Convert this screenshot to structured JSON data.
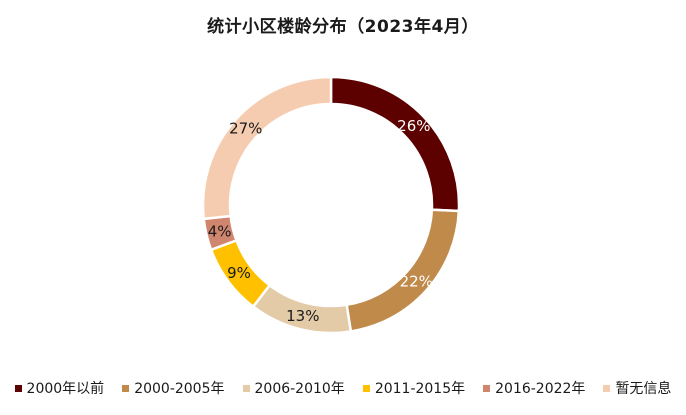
{
  "chart_data": {
    "type": "pie",
    "title": "统计小区楼龄分布（2023年4月）",
    "categories": [
      "2000年以前",
      "2000-2005年",
      "2006-2010年",
      "2011-2015年",
      "2016-2022年",
      "暂无信息"
    ],
    "values": [
      26,
      22,
      13,
      9,
      4,
      27
    ],
    "labels": [
      "26%",
      "22%",
      "13%",
      "9%",
      "4%",
      "27%"
    ],
    "colors": [
      "#5c0000",
      "#c08a4b",
      "#e3cba8",
      "#ffc000",
      "#d0856f",
      "#f6ccb0"
    ],
    "label_colors": [
      "#ffffff",
      "#ffffff",
      "#1a1a1a",
      "#1a1a1a",
      "#1a1a1a",
      "#1a1a1a"
    ],
    "donut": true,
    "legend_position": "bottom"
  }
}
